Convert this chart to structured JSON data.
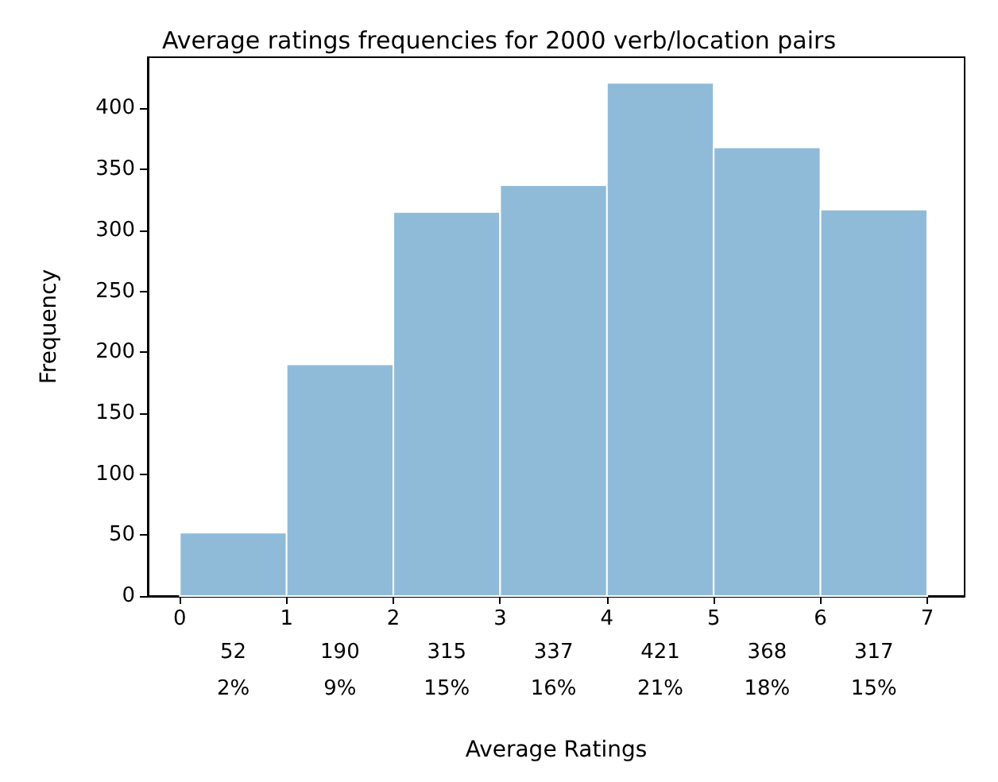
{
  "chart_data": {
    "type": "histogram",
    "title": "Average ratings frequencies for 2000 verb/location pairs",
    "xlabel": "Average Ratings",
    "ylabel": "Frequency",
    "bins": [
      0,
      1,
      2,
      3,
      4,
      5,
      6,
      7
    ],
    "values": [
      52,
      190,
      315,
      337,
      421,
      368,
      317
    ],
    "value_labels": [
      "52\n2%",
      "190\n9%",
      "315\n15%",
      "337\n16%",
      "421\n21%",
      "368\n18%",
      "317\n15%"
    ],
    "color": "#8fbbd9",
    "xlim": [
      -0.3,
      7.35
    ],
    "xticks": [
      0,
      1,
      2,
      3,
      4,
      5,
      6,
      7
    ],
    "ylim": [
      0,
      442
    ],
    "yticks": [
      0,
      50,
      100,
      150,
      200,
      250,
      300,
      350,
      400
    ],
    "grid": false
  }
}
